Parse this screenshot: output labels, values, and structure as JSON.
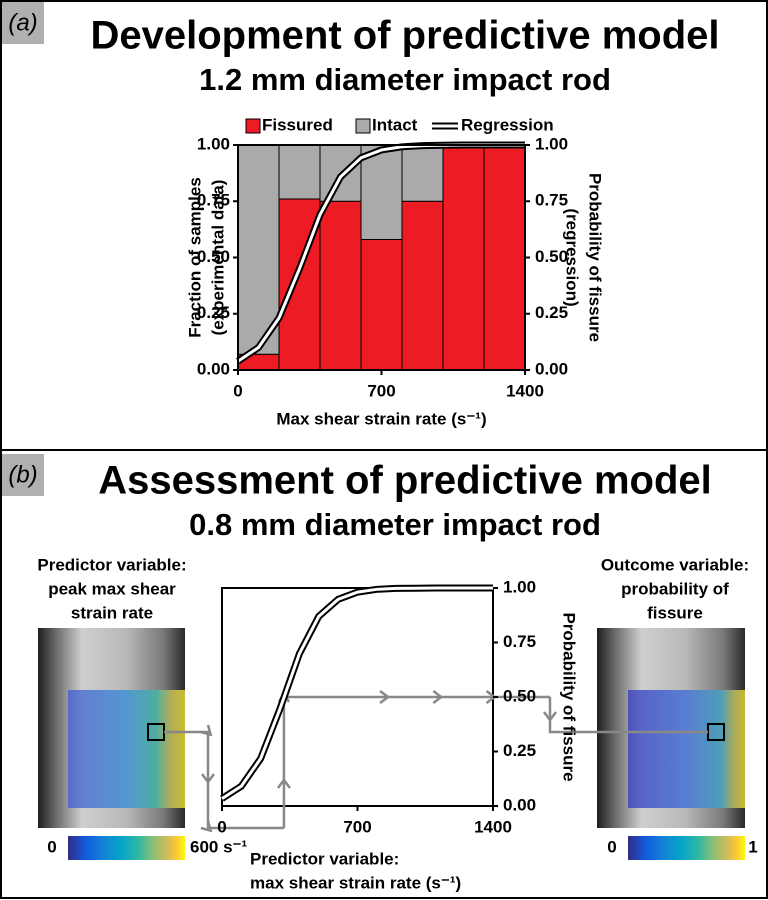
{
  "chart_data": [
    {
      "type": "histogram",
      "panel_label": "(a)",
      "title": "Development of predictive model",
      "subtitle": "1.2 mm diameter impact rod",
      "x_label": "Max shear strain rate (s⁻¹)",
      "y_label": [
        "Fraction of samples",
        "(experimental data)"
      ],
      "y2_label": [
        "Probability of fissure",
        "(regression)"
      ],
      "bins": [
        0,
        200,
        400,
        600,
        800,
        1000,
        1200,
        1400
      ],
      "series": [
        {
          "name": "Fissured",
          "color": "#ed1c24",
          "values": [
            0.07,
            0.76,
            0.75,
            0.58,
            0.75,
            1.0,
            1.0
          ]
        },
        {
          "name": "Intact",
          "color": "#aaaaaa",
          "values": [
            0.93,
            0.24,
            0.25,
            0.42,
            0.25,
            0.0,
            0.0
          ]
        },
        {
          "name": "Regression",
          "type": "line",
          "axis": "y2",
          "color": "#000000",
          "x": [
            0,
            100,
            200,
            300,
            400,
            500,
            600,
            700,
            800,
            900,
            1000,
            1100,
            1200,
            1300,
            1400
          ],
          "values": [
            0.039,
            0.1,
            0.231,
            0.45,
            0.69,
            0.858,
            0.943,
            0.978,
            0.992,
            0.997,
            0.999,
            1.0,
            1.0,
            1.0,
            1.0
          ]
        }
      ],
      "xlim": [
        0,
        1400
      ],
      "xticks": [
        0,
        700,
        1400
      ],
      "ylim": [
        0,
        1
      ],
      "yticks": [
        {
          "value": 0,
          "label": "0.00"
        },
        {
          "value": 0.25,
          "label": "0.25"
        },
        {
          "value": 0.5,
          "label": "0.50"
        },
        {
          "value": 0.75,
          "label": "0.75"
        },
        {
          "value": 1,
          "label": "1.00"
        }
      ],
      "y2lim": [
        0,
        1
      ],
      "y2ticks": [
        {
          "value": 0,
          "label": "0.00"
        },
        {
          "value": 0.25,
          "label": "0.25"
        },
        {
          "value": 0.5,
          "label": "0.50"
        },
        {
          "value": 0.75,
          "label": "0.75"
        },
        {
          "value": 1,
          "label": "1.00"
        }
      ]
    },
    {
      "type": "line",
      "panel_label": "(b)",
      "title": "Assessment of predictive model",
      "subtitle": "0.8 mm diameter impact rod",
      "x_label": [
        "Predictor variable:",
        "max shear strain rate (s⁻¹)"
      ],
      "y2_label": "Probability of fissure",
      "predictor_label": [
        "Predictor variable:",
        "peak max shear",
        "strain rate"
      ],
      "outcome_label": [
        "Outcome variable:",
        "probability of",
        "fissure"
      ],
      "predictor_colorbar_labels": [
        "0",
        "600 s⁻¹"
      ],
      "outcome_colorbar_labels": [
        "0",
        "1"
      ],
      "series": [
        {
          "axis": "y2",
          "color": "#000000",
          "x": [
            0,
            100,
            200,
            300,
            400,
            500,
            600,
            700,
            800,
            900,
            1000,
            1100,
            1200,
            1300,
            1400
          ],
          "values": [
            0.034,
            0.091,
            0.218,
            0.447,
            0.699,
            0.87,
            0.948,
            0.981,
            0.994,
            0.998,
            0.999,
            1.0,
            1.0,
            1.0,
            1.0
          ]
        }
      ],
      "example": {
        "x": 320,
        "y": 0.5
      },
      "xlim": [
        0,
        1400
      ],
      "xticks": [
        0,
        700,
        1400
      ],
      "y2lim": [
        0,
        1
      ],
      "y2ticks": [
        {
          "value": 0,
          "label": "0.00"
        },
        {
          "value": 0.25,
          "label": "0.25"
        },
        {
          "value": 0.5,
          "label": "0.50"
        },
        {
          "value": 0.75,
          "label": "0.75"
        },
        {
          "value": 1,
          "label": "1.00"
        }
      ]
    }
  ]
}
